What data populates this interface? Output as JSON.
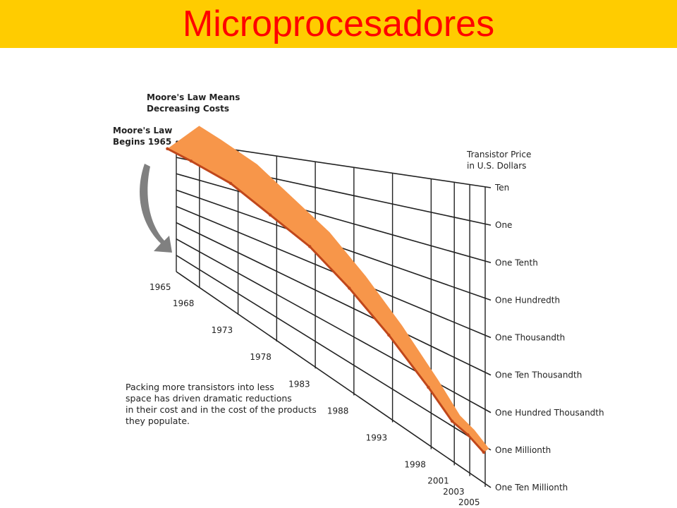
{
  "header": {
    "title": "Microprocesadores"
  },
  "colors": {
    "banner": "#ffcc00",
    "title": "#ff0000",
    "band": "#f7964a",
    "band_edge": "#c0471b",
    "grid": "#222222",
    "arrow": "#808080"
  },
  "figure": {
    "heading": [
      "Moore's Law Means",
      "Decreasing Costs"
    ],
    "start_label": [
      "Moore's Law",
      "Begins 1965"
    ],
    "axis_title": [
      "Transistor Price",
      "in U.S. Dollars"
    ],
    "note": [
      "Packing more transistors into less",
      "space has driven dramatic reductions",
      "in their cost and in the cost of the products",
      "they populate."
    ]
  },
  "chart_data": {
    "type": "area",
    "title": "Moore's Law Means Decreasing Costs",
    "ylabel": "Transistor Price in U.S. Dollars",
    "yscale": "log",
    "y_ticks": [
      "Ten",
      "One",
      "One Tenth",
      "One Hundredth",
      "One Thousandth",
      "One Ten Thousandth",
      "One Hundred Thousandth",
      "One Millionth",
      "One Ten Millionth"
    ],
    "x_ticks": [
      "1965",
      "1968",
      "1973",
      "1978",
      "1983",
      "1988",
      "1993",
      "1998",
      "2001",
      "2003",
      "2005"
    ],
    "series": [
      {
        "x": [
          1965,
          1968,
          1973,
          1978,
          1983,
          1988,
          1993,
          1998,
          2001,
          2003,
          2005
        ],
        "y": [
          10,
          3,
          0.5,
          0.05,
          0.008,
          0.0008,
          8e-05,
          8e-06,
          2e-06,
          1.5e-06,
          9e-07
        ]
      }
    ],
    "grid": true
  }
}
